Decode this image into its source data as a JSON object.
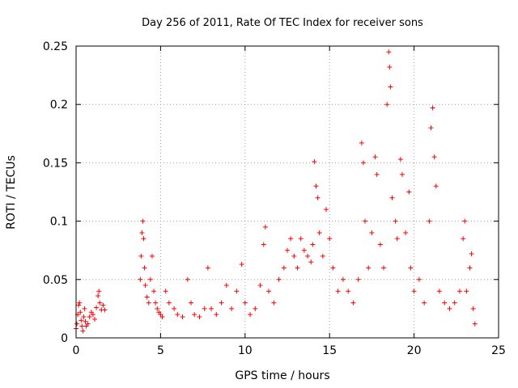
{
  "chart_data": {
    "type": "scatter",
    "title": "Day 256 of 2011, Rate Of TEC Index for receiver sons",
    "xlabel": "GPS time / hours",
    "ylabel": "ROTI / TECUs",
    "xlim": [
      0,
      25
    ],
    "ylim": [
      0,
      0.25
    ],
    "x_ticks": [
      0,
      5,
      10,
      15,
      20,
      25
    ],
    "y_ticks": [
      0,
      0.05,
      0.1,
      0.15,
      0.2,
      0.25
    ],
    "x_tick_labels": [
      "0",
      "5",
      "10",
      "15",
      "20",
      "25"
    ],
    "y_tick_labels": [
      "0",
      "0.05",
      "0.1",
      "0.15",
      "0.2",
      "0.25"
    ],
    "grid": true,
    "marker": "+",
    "marker_color": "#ff0000",
    "series": [
      {
        "name": "ROTI",
        "points": [
          [
            0.0,
            0.008
          ],
          [
            0.05,
            0.012
          ],
          [
            0.1,
            0.02
          ],
          [
            0.15,
            0.028
          ],
          [
            0.2,
            0.03
          ],
          [
            0.25,
            0.022
          ],
          [
            0.3,
            0.015
          ],
          [
            0.35,
            0.01
          ],
          [
            0.4,
            0.006
          ],
          [
            0.45,
            0.018
          ],
          [
            0.5,
            0.025
          ],
          [
            0.55,
            0.014
          ],
          [
            0.6,
            0.01
          ],
          [
            0.7,
            0.012
          ],
          [
            0.8,
            0.018
          ],
          [
            0.9,
            0.022
          ],
          [
            1.0,
            0.02
          ],
          [
            1.1,
            0.016
          ],
          [
            1.2,
            0.026
          ],
          [
            1.3,
            0.036
          ],
          [
            1.35,
            0.04
          ],
          [
            1.4,
            0.03
          ],
          [
            1.5,
            0.024
          ],
          [
            1.6,
            0.028
          ],
          [
            1.7,
            0.024
          ],
          [
            3.8,
            0.05
          ],
          [
            3.85,
            0.07
          ],
          [
            3.9,
            0.09
          ],
          [
            3.95,
            0.1
          ],
          [
            4.0,
            0.085
          ],
          [
            4.05,
            0.06
          ],
          [
            4.1,
            0.045
          ],
          [
            4.2,
            0.035
          ],
          [
            4.3,
            0.03
          ],
          [
            4.4,
            0.05
          ],
          [
            4.5,
            0.07
          ],
          [
            4.6,
            0.04
          ],
          [
            4.7,
            0.03
          ],
          [
            4.8,
            0.025
          ],
          [
            4.9,
            0.022
          ],
          [
            5.0,
            0.02
          ],
          [
            5.1,
            0.018
          ],
          [
            5.3,
            0.04
          ],
          [
            5.5,
            0.03
          ],
          [
            5.8,
            0.025
          ],
          [
            6.0,
            0.02
          ],
          [
            6.3,
            0.018
          ],
          [
            6.6,
            0.05
          ],
          [
            6.8,
            0.03
          ],
          [
            7.0,
            0.02
          ],
          [
            7.3,
            0.018
          ],
          [
            7.6,
            0.025
          ],
          [
            7.8,
            0.06
          ],
          [
            8.0,
            0.025
          ],
          [
            8.3,
            0.02
          ],
          [
            8.6,
            0.03
          ],
          [
            8.9,
            0.045
          ],
          [
            9.2,
            0.025
          ],
          [
            9.5,
            0.04
          ],
          [
            9.8,
            0.063
          ],
          [
            10.0,
            0.03
          ],
          [
            10.3,
            0.02
          ],
          [
            10.6,
            0.025
          ],
          [
            10.9,
            0.045
          ],
          [
            11.1,
            0.08
          ],
          [
            11.2,
            0.095
          ],
          [
            11.4,
            0.04
          ],
          [
            11.7,
            0.03
          ],
          [
            12.0,
            0.05
          ],
          [
            12.3,
            0.06
          ],
          [
            12.5,
            0.075
          ],
          [
            12.7,
            0.085
          ],
          [
            12.9,
            0.07
          ],
          [
            13.1,
            0.06
          ],
          [
            13.3,
            0.085
          ],
          [
            13.5,
            0.075
          ],
          [
            13.7,
            0.07
          ],
          [
            13.9,
            0.065
          ],
          [
            14.0,
            0.08
          ],
          [
            14.1,
            0.151
          ],
          [
            14.2,
            0.13
          ],
          [
            14.3,
            0.12
          ],
          [
            14.4,
            0.09
          ],
          [
            14.6,
            0.07
          ],
          [
            14.8,
            0.11
          ],
          [
            15.0,
            0.085
          ],
          [
            15.2,
            0.06
          ],
          [
            15.5,
            0.04
          ],
          [
            15.8,
            0.05
          ],
          [
            16.1,
            0.04
          ],
          [
            16.4,
            0.03
          ],
          [
            16.7,
            0.05
          ],
          [
            16.9,
            0.167
          ],
          [
            17.0,
            0.15
          ],
          [
            17.1,
            0.1
          ],
          [
            17.3,
            0.06
          ],
          [
            17.5,
            0.09
          ],
          [
            17.7,
            0.155
          ],
          [
            17.8,
            0.14
          ],
          [
            18.0,
            0.08
          ],
          [
            18.2,
            0.06
          ],
          [
            18.4,
            0.2
          ],
          [
            18.5,
            0.245
          ],
          [
            18.55,
            0.232
          ],
          [
            18.6,
            0.215
          ],
          [
            18.7,
            0.12
          ],
          [
            18.9,
            0.1
          ],
          [
            19.0,
            0.085
          ],
          [
            19.2,
            0.153
          ],
          [
            19.3,
            0.14
          ],
          [
            19.5,
            0.09
          ],
          [
            19.7,
            0.125
          ],
          [
            19.8,
            0.06
          ],
          [
            20.0,
            0.04
          ],
          [
            20.3,
            0.05
          ],
          [
            20.6,
            0.03
          ],
          [
            20.9,
            0.1
          ],
          [
            21.0,
            0.18
          ],
          [
            21.1,
            0.197
          ],
          [
            21.2,
            0.155
          ],
          [
            21.3,
            0.13
          ],
          [
            21.5,
            0.04
          ],
          [
            21.8,
            0.03
          ],
          [
            22.1,
            0.025
          ],
          [
            22.4,
            0.03
          ],
          [
            22.7,
            0.04
          ],
          [
            22.9,
            0.085
          ],
          [
            23.0,
            0.1
          ],
          [
            23.1,
            0.04
          ],
          [
            23.3,
            0.06
          ],
          [
            23.4,
            0.072
          ],
          [
            23.5,
            0.025
          ],
          [
            23.6,
            0.012
          ]
        ]
      }
    ]
  }
}
